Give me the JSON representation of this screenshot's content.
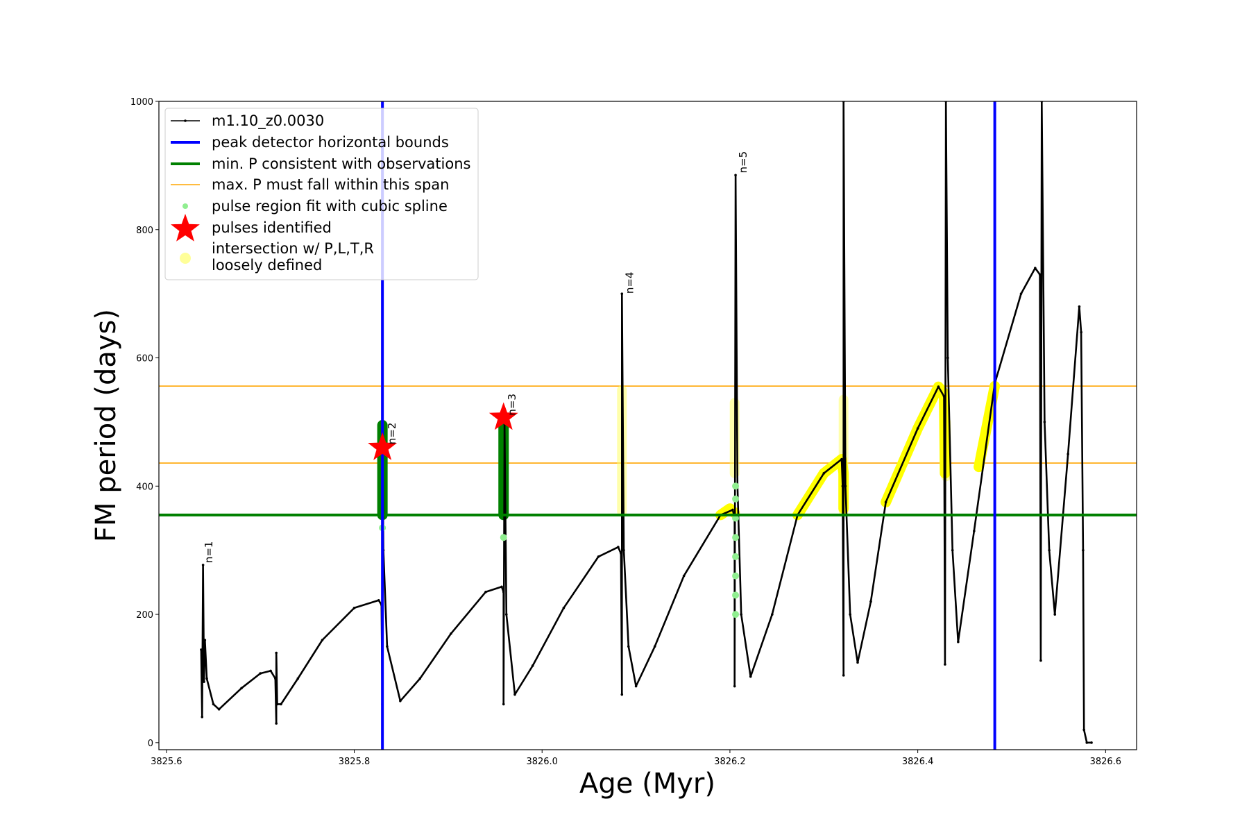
{
  "chart_data": {
    "type": "line",
    "xlabel": "Age (Myr)",
    "ylabel": "FM period (days)",
    "xlim": [
      3825.592,
      3826.633
    ],
    "ylim": [
      -11,
      1000
    ],
    "xticks": [
      3825.6,
      3825.8,
      3826.0,
      3826.2,
      3826.4,
      3826.6
    ],
    "xtick_labels": [
      "3825.6",
      "3825.8",
      "3826.0",
      "3826.2",
      "3826.4",
      "3826.6"
    ],
    "yticks": [
      0,
      200,
      400,
      600,
      800,
      1000
    ],
    "ytick_labels": [
      "0",
      "200",
      "400",
      "600",
      "800",
      "1000"
    ],
    "grid": false,
    "legend_placement": "top-left",
    "legend": [
      {
        "label": "m1.10_z0.0030",
        "kind": "line-marker",
        "color": "#000000"
      },
      {
        "label": "peak detector horizontal bounds",
        "kind": "thick-line",
        "color": "#0000ff"
      },
      {
        "label": "min. P consistent with observations",
        "kind": "thick-line",
        "color": "#008000"
      },
      {
        "label": "max. P must fall within this span",
        "kind": "thin-line",
        "color": "#ffa500"
      },
      {
        "label": "pulse region fit with cubic spline",
        "kind": "dot",
        "color": "#90ee90"
      },
      {
        "label": "pulses identified",
        "kind": "star",
        "color": "#ff0000"
      },
      {
        "label": "intersection w/ P,L,T,R",
        "label2": "loosely defined",
        "kind": "big-dot",
        "color": "#ffff99"
      }
    ],
    "series": {
      "name": "m1.10_z0.0030",
      "color": "#000000",
      "points": [
        [
          3825.637,
          145
        ],
        [
          3825.638,
          40
        ],
        [
          3825.639,
          277
        ],
        [
          3825.64,
          95
        ],
        [
          3825.641,
          160
        ],
        [
          3825.643,
          100
        ],
        [
          3825.65,
          60
        ],
        [
          3825.656,
          52
        ],
        [
          3825.68,
          85
        ],
        [
          3825.7,
          108
        ],
        [
          3825.711,
          112
        ],
        [
          3825.716,
          100
        ],
        [
          3825.717,
          30
        ],
        [
          3825.717,
          140
        ],
        [
          3825.718,
          60
        ],
        [
          3825.722,
          60
        ],
        [
          3825.74,
          100
        ],
        [
          3825.766,
          160
        ],
        [
          3825.8,
          210
        ],
        [
          3825.826,
          222
        ],
        [
          3825.829,
          215
        ],
        [
          3825.83,
          60
        ],
        [
          3825.83,
          500
        ],
        [
          3825.831,
          300
        ],
        [
          3825.835,
          150
        ],
        [
          3825.849,
          65
        ],
        [
          3825.87,
          100
        ],
        [
          3825.903,
          170
        ],
        [
          3825.94,
          235
        ],
        [
          3825.957,
          243
        ],
        [
          3825.959,
          235
        ],
        [
          3825.959,
          60
        ],
        [
          3825.96,
          500
        ],
        [
          3825.962,
          200
        ],
        [
          3825.971,
          75
        ],
        [
          3825.99,
          120
        ],
        [
          3826.023,
          210
        ],
        [
          3826.06,
          290
        ],
        [
          3826.081,
          305
        ],
        [
          3826.084,
          295
        ],
        [
          3826.085,
          75
        ],
        [
          3826.085,
          700
        ],
        [
          3826.087,
          300
        ],
        [
          3826.092,
          150
        ],
        [
          3826.1,
          88
        ],
        [
          3826.12,
          150
        ],
        [
          3826.151,
          260
        ],
        [
          3826.19,
          355
        ],
        [
          3826.203,
          363
        ],
        [
          3826.205,
          350
        ],
        [
          3826.205,
          88
        ],
        [
          3826.206,
          885
        ],
        [
          3826.208,
          400
        ],
        [
          3826.212,
          200
        ],
        [
          3826.222,
          103
        ],
        [
          3826.245,
          200
        ],
        [
          3826.272,
          355
        ],
        [
          3826.3,
          420
        ],
        [
          3826.319,
          442
        ],
        [
          3826.32,
          400
        ],
        [
          3826.321,
          105
        ],
        [
          3826.321,
          1000
        ],
        [
          3826.323,
          400
        ],
        [
          3826.328,
          200
        ],
        [
          3826.336,
          125
        ],
        [
          3826.35,
          220
        ],
        [
          3826.366,
          375
        ],
        [
          3826.4,
          490
        ],
        [
          3826.422,
          555
        ],
        [
          3826.428,
          540
        ],
        [
          3826.429,
          122
        ],
        [
          3826.43,
          1000
        ],
        [
          3826.432,
          600
        ],
        [
          3826.437,
          300
        ],
        [
          3826.443,
          157
        ],
        [
          3826.46,
          330
        ],
        [
          3826.482,
          560
        ],
        [
          3826.51,
          700
        ],
        [
          3826.525,
          740
        ],
        [
          3826.53,
          730
        ],
        [
          3826.531,
          128
        ],
        [
          3826.532,
          1000
        ],
        [
          3826.535,
          500
        ],
        [
          3826.54,
          300
        ],
        [
          3826.546,
          200
        ],
        [
          3826.56,
          450
        ],
        [
          3826.572,
          680
        ],
        [
          3826.574,
          640
        ],
        [
          3826.576,
          300
        ],
        [
          3826.577,
          20
        ],
        [
          3826.58,
          0
        ],
        [
          3826.585,
          0
        ]
      ]
    },
    "vertical_bounds": [
      3825.83,
      3826.482
    ],
    "min_period": 355,
    "max_period_span": [
      436,
      556
    ],
    "spline_regions": [
      {
        "x": 3825.83,
        "y_range": [
          355,
          495
        ]
      },
      {
        "x": 3825.959,
        "y_range": [
          355,
          495
        ]
      }
    ],
    "spline_points": [
      [
        3825.83,
        335
      ],
      [
        3825.959,
        320
      ],
      [
        3826.206,
        200
      ],
      [
        3826.206,
        230
      ],
      [
        3826.206,
        260
      ],
      [
        3826.206,
        290
      ],
      [
        3826.206,
        320
      ],
      [
        3826.206,
        350
      ],
      [
        3826.206,
        380
      ],
      [
        3826.206,
        400
      ]
    ],
    "intersections": [
      [
        [
          3826.19,
          355
        ],
        [
          3826.2,
          365
        ],
        [
          3826.205,
          358
        ]
      ],
      [
        [
          3826.272,
          355
        ],
        [
          3826.3,
          420
        ],
        [
          3826.319,
          442
        ],
        [
          3826.321,
          420
        ],
        [
          3826.321,
          365
        ]
      ],
      [
        [
          3826.366,
          375
        ],
        [
          3826.4,
          490
        ],
        [
          3826.422,
          555
        ],
        [
          3826.428,
          545
        ],
        [
          3826.429,
          420
        ]
      ],
      [
        [
          3826.465,
          430
        ],
        [
          3826.482,
          556
        ]
      ]
    ],
    "loose_intersections": [
      {
        "x": 3826.085,
        "y_range": [
          360,
          550
        ]
      },
      {
        "x": 3826.205,
        "y_range": [
          420,
          530
        ]
      },
      {
        "x": 3826.321,
        "y_range": [
          360,
          535
        ]
      },
      {
        "x": 3826.43,
        "y_range": [
          415,
          500
        ]
      }
    ],
    "pulses": [
      [
        3825.83,
        460
      ],
      [
        3825.959,
        507
      ]
    ],
    "annotations": [
      {
        "text": "n=1",
        "x": 3825.64,
        "y": 280
      },
      {
        "text": "n=2",
        "x": 3825.835,
        "y": 465
      },
      {
        "text": "n=3",
        "x": 3825.963,
        "y": 510
      },
      {
        "text": "n=4",
        "x": 3826.088,
        "y": 700
      },
      {
        "text": "n=5",
        "x": 3826.209,
        "y": 888
      }
    ]
  }
}
